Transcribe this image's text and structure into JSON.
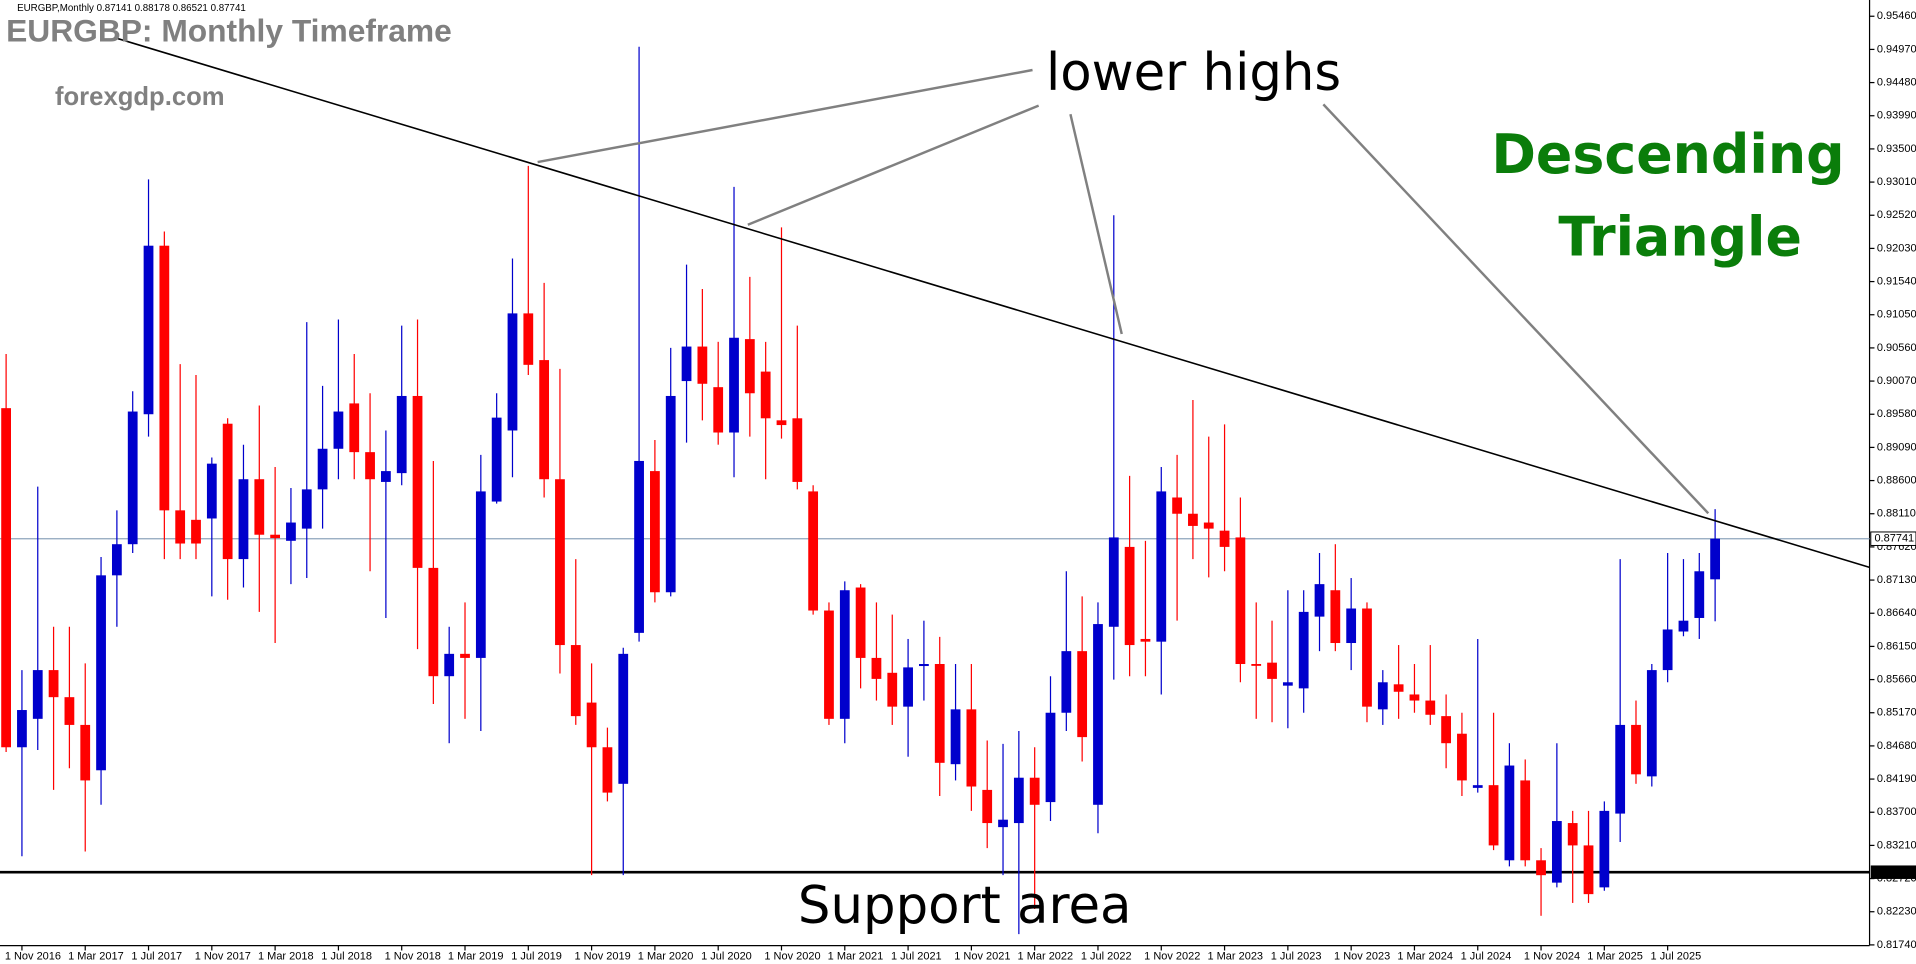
{
  "chart_data": {
    "type": "candlestick",
    "header": "EURGBP,Monthly  0.87141 0.88178 0.86521 0.87741",
    "title": "EURGBP: Monthly Timeframe",
    "site": "forexgdp.com",
    "annotation_highs": "lower highs",
    "annotation_pattern": [
      "Descending",
      "Triangle"
    ],
    "annotation_support": "Support area",
    "up_color": "#0000cc",
    "down_color": "#ff0000",
    "current_price": 0.87741,
    "support_level": 0.82814,
    "ylim": [
      0.8173,
      0.957
    ],
    "yticks": [
      {
        "value": 0.9546,
        "label": "0.95460"
      },
      {
        "value": 0.9497,
        "label": "0.94970"
      },
      {
        "value": 0.9448,
        "label": "0.94480"
      },
      {
        "value": 0.9399,
        "label": "0.93990"
      },
      {
        "value": 0.935,
        "label": "0.93500"
      },
      {
        "value": 0.9301,
        "label": "0.93010"
      },
      {
        "value": 0.9252,
        "label": "0.92520"
      },
      {
        "value": 0.9203,
        "label": "0.92030"
      },
      {
        "value": 0.9154,
        "label": "0.91540"
      },
      {
        "value": 0.9105,
        "label": "0.91050"
      },
      {
        "value": 0.9056,
        "label": "0.90560"
      },
      {
        "value": 0.9007,
        "label": "0.90070"
      },
      {
        "value": 0.8958,
        "label": "0.89580"
      },
      {
        "value": 0.8909,
        "label": "0.89090"
      },
      {
        "value": 0.886,
        "label": "0.88600"
      },
      {
        "value": 0.8811,
        "label": "0.88110"
      },
      {
        "value": 0.8762,
        "label": "0.87620"
      },
      {
        "value": 0.8713,
        "label": "0.87130"
      },
      {
        "value": 0.8664,
        "label": "0.86640"
      },
      {
        "value": 0.8615,
        "label": "0.86150"
      },
      {
        "value": 0.8566,
        "label": "0.85660"
      },
      {
        "value": 0.8517,
        "label": "0.85170"
      },
      {
        "value": 0.8468,
        "label": "0.84680"
      },
      {
        "value": 0.8419,
        "label": "0.84190"
      },
      {
        "value": 0.837,
        "label": "0.83700"
      },
      {
        "value": 0.8321,
        "label": "0.83210"
      },
      {
        "value": 0.8272,
        "label": "0.82720"
      },
      {
        "value": 0.8223,
        "label": "0.82230"
      },
      {
        "value": 0.8174,
        "label": "0.81740"
      }
    ],
    "categories": [
      null,
      "1 Nov 2016",
      null,
      null,
      null,
      "1 Mar 2017",
      null,
      null,
      null,
      "1 Jul 2017",
      null,
      null,
      null,
      "1 Nov 2017",
      null,
      null,
      null,
      "1 Mar 2018",
      null,
      null,
      null,
      "1 Jul 2018",
      null,
      null,
      null,
      "1 Nov 2018",
      null,
      null,
      null,
      "1 Mar 2019",
      null,
      null,
      null,
      "1 Jul 2019",
      null,
      null,
      null,
      "1 Nov 2019",
      null,
      null,
      null,
      "1 Mar 2020",
      null,
      null,
      null,
      "1 Jul 2020",
      null,
      null,
      null,
      "1 Nov 2020",
      null,
      null,
      null,
      "1 Mar 2021",
      null,
      null,
      null,
      "1 Jul 2021",
      null,
      null,
      null,
      "1 Nov 2021",
      null,
      null,
      null,
      "1 Mar 2022",
      null,
      null,
      null,
      "1 Jul 2022",
      null,
      null,
      null,
      "1 Nov 2022",
      null,
      null,
      null,
      "1 Mar 2023",
      null,
      null,
      null,
      "1 Jul 2023",
      null,
      null,
      null,
      "1 Nov 2023",
      null,
      null,
      null,
      "1 Mar 2024",
      null,
      null,
      null,
      "1 Jul 2024",
      null,
      null,
      null,
      "1 Nov 2024",
      null,
      null,
      null,
      "1 Mar 2025",
      null,
      null,
      null,
      "1 Jul 2025",
      null,
      null,
      null
    ],
    "open": [
      0.8967,
      0.8466,
      0.8508,
      0.858,
      0.854,
      0.8499,
      0.8432,
      0.872,
      0.8766,
      0.8958,
      0.9207,
      0.8816,
      0.8802,
      0.8804,
      0.8944,
      0.8744,
      0.8862,
      0.878,
      0.8771,
      0.8789,
      0.8847,
      0.8907,
      0.8974,
      0.8902,
      0.8858,
      0.8871,
      0.8985,
      0.8731,
      0.8571,
      0.8604,
      0.8598,
      0.8829,
      0.8934,
      0.9107,
      0.9038,
      0.8862,
      0.8617,
      0.8532,
      0.8466,
      0.8412,
      0.8635,
      0.8874,
      0.8695,
      0.9007,
      0.9058,
      0.8998,
      0.8931,
      0.9069,
      0.9021,
      0.8949,
      0.8952,
      0.8844,
      0.8668,
      0.8508,
      0.8702,
      0.8598,
      0.8576,
      0.8526,
      0.8586,
      0.8589,
      0.8441,
      0.8522,
      0.8403,
      0.8348,
      0.8354,
      0.8421,
      0.8385,
      0.8517,
      0.8608,
      0.8381,
      0.8644,
      0.8762,
      0.8626,
      0.8622,
      0.8835,
      0.8811,
      0.8798,
      0.8786,
      0.8776,
      0.8589,
      0.8591,
      0.8557,
      0.8553,
      0.8659,
      0.8698,
      0.862,
      0.8671,
      0.8522,
      0.8559,
      0.8544,
      0.8535,
      0.8512,
      0.8486,
      0.8406,
      0.841,
      0.8299,
      0.8417,
      0.8299,
      0.8266,
      0.8354,
      0.8321,
      0.8259,
      0.8368,
      0.8499,
      0.8423,
      0.858,
      0.8637,
      0.8657,
      0.87141
    ],
    "high": [
      0.9047,
      0.858,
      0.8851,
      0.8644,
      0.8644,
      0.859,
      0.8747,
      0.8816,
      0.8992,
      0.9305,
      0.9228,
      0.9032,
      0.9016,
      0.8894,
      0.8952,
      0.8913,
      0.8971,
      0.888,
      0.8849,
      0.9094,
      0.9,
      0.9098,
      0.9047,
      0.8989,
      0.8934,
      0.9089,
      0.9098,
      0.8889,
      0.8644,
      0.868,
      0.8898,
      0.8989,
      0.9188,
      0.9325,
      0.9152,
      0.9025,
      0.8744,
      0.859,
      0.8495,
      0.8613,
      0.9501,
      0.892,
      0.9056,
      0.9179,
      0.9143,
      0.9065,
      0.9294,
      0.9161,
      0.9065,
      0.9234,
      0.9089,
      0.8853,
      0.868,
      0.8711,
      0.8707,
      0.868,
      0.8662,
      0.8626,
      0.8653,
      0.8629,
      0.8589,
      0.8589,
      0.8476,
      0.8471,
      0.849,
      0.8466,
      0.8571,
      0.8726,
      0.8689,
      0.868,
      0.9252,
      0.8867,
      0.8771,
      0.888,
      0.8898,
      0.8979,
      0.8925,
      0.8943,
      0.8835,
      0.868,
      0.8653,
      0.8698,
      0.8698,
      0.8753,
      0.8766,
      0.8716,
      0.868,
      0.858,
      0.8617,
      0.8589,
      0.8617,
      0.8544,
      0.8517,
      0.8626,
      0.8517,
      0.8472,
      0.8448,
      0.8317,
      0.8472,
      0.8372,
      0.8372,
      0.8386,
      0.8744,
      0.8535,
      0.8589,
      0.8753,
      0.8744,
      0.8753,
      0.88178
    ],
    "low": [
      0.8459,
      0.8305,
      0.8462,
      0.8403,
      0.8435,
      0.8312,
      0.8381,
      0.8644,
      0.8753,
      0.8925,
      0.8744,
      0.8744,
      0.8744,
      0.8689,
      0.8684,
      0.8702,
      0.8666,
      0.862,
      0.8707,
      0.8716,
      0.8789,
      0.8862,
      0.8862,
      0.8726,
      0.8657,
      0.8853,
      0.8611,
      0.853,
      0.8472,
      0.8508,
      0.849,
      0.8826,
      0.8865,
      0.9016,
      0.8835,
      0.8575,
      0.8499,
      0.8277,
      0.8386,
      0.8277,
      0.8622,
      0.868,
      0.8689,
      0.8916,
      0.8949,
      0.8913,
      0.8865,
      0.8925,
      0.8862,
      0.8922,
      0.8847,
      0.8662,
      0.8499,
      0.8472,
      0.8553,
      0.8535,
      0.8499,
      0.8452,
      0.8535,
      0.8394,
      0.8417,
      0.8372,
      0.8317,
      0.8277,
      0.819,
      0.8227,
      0.8357,
      0.849,
      0.8445,
      0.8339,
      0.8566,
      0.8571,
      0.8571,
      0.8544,
      0.8653,
      0.8744,
      0.8717,
      0.8726,
      0.8562,
      0.8508,
      0.8503,
      0.8494,
      0.8517,
      0.8608,
      0.8608,
      0.858,
      0.8503,
      0.8499,
      0.8508,
      0.8517,
      0.8499,
      0.8435,
      0.8394,
      0.8399,
      0.8314,
      0.829,
      0.829,
      0.8217,
      0.8259,
      0.8236,
      0.8236,
      0.8254,
      0.8326,
      0.8412,
      0.8408,
      0.8562,
      0.863,
      0.8626,
      0.86521
    ],
    "close": [
      0.8466,
      0.8521,
      0.858,
      0.854,
      0.8499,
      0.8417,
      0.872,
      0.8766,
      0.8962,
      0.9207,
      0.8816,
      0.8767,
      0.8767,
      0.8885,
      0.8744,
      0.8862,
      0.878,
      0.8775,
      0.8798,
      0.8847,
      0.8907,
      0.8962,
      0.8902,
      0.8862,
      0.8874,
      0.8985,
      0.8731,
      0.8571,
      0.8604,
      0.8598,
      0.8844,
      0.8953,
      0.9107,
      0.9031,
      0.8862,
      0.8617,
      0.8512,
      0.8466,
      0.8399,
      0.8604,
      0.8889,
      0.8695,
      0.8985,
      0.9058,
      0.9003,
      0.8931,
      0.9071,
      0.8989,
      0.8952,
      0.8942,
      0.8858,
      0.8668,
      0.8508,
      0.8698,
      0.8598,
      0.8567,
      0.8526,
      0.8584,
      0.8589,
      0.8443,
      0.8522,
      0.8408,
      0.8354,
      0.8359,
      0.8421,
      0.8381,
      0.8517,
      0.8608,
      0.8481,
      0.8648,
      0.8776,
      0.8617,
      0.8622,
      0.8844,
      0.8811,
      0.8793,
      0.8789,
      0.8762,
      0.8589,
      0.8587,
      0.8567,
      0.8562,
      0.8666,
      0.8707,
      0.862,
      0.8671,
      0.8526,
      0.8562,
      0.8548,
      0.8535,
      0.8514,
      0.8472,
      0.8417,
      0.841,
      0.8321,
      0.8439,
      0.8299,
      0.8277,
      0.8357,
      0.8321,
      0.8249,
      0.8372,
      0.8499,
      0.8426,
      0.858,
      0.864,
      0.8653,
      0.8726,
      0.87741
    ]
  }
}
